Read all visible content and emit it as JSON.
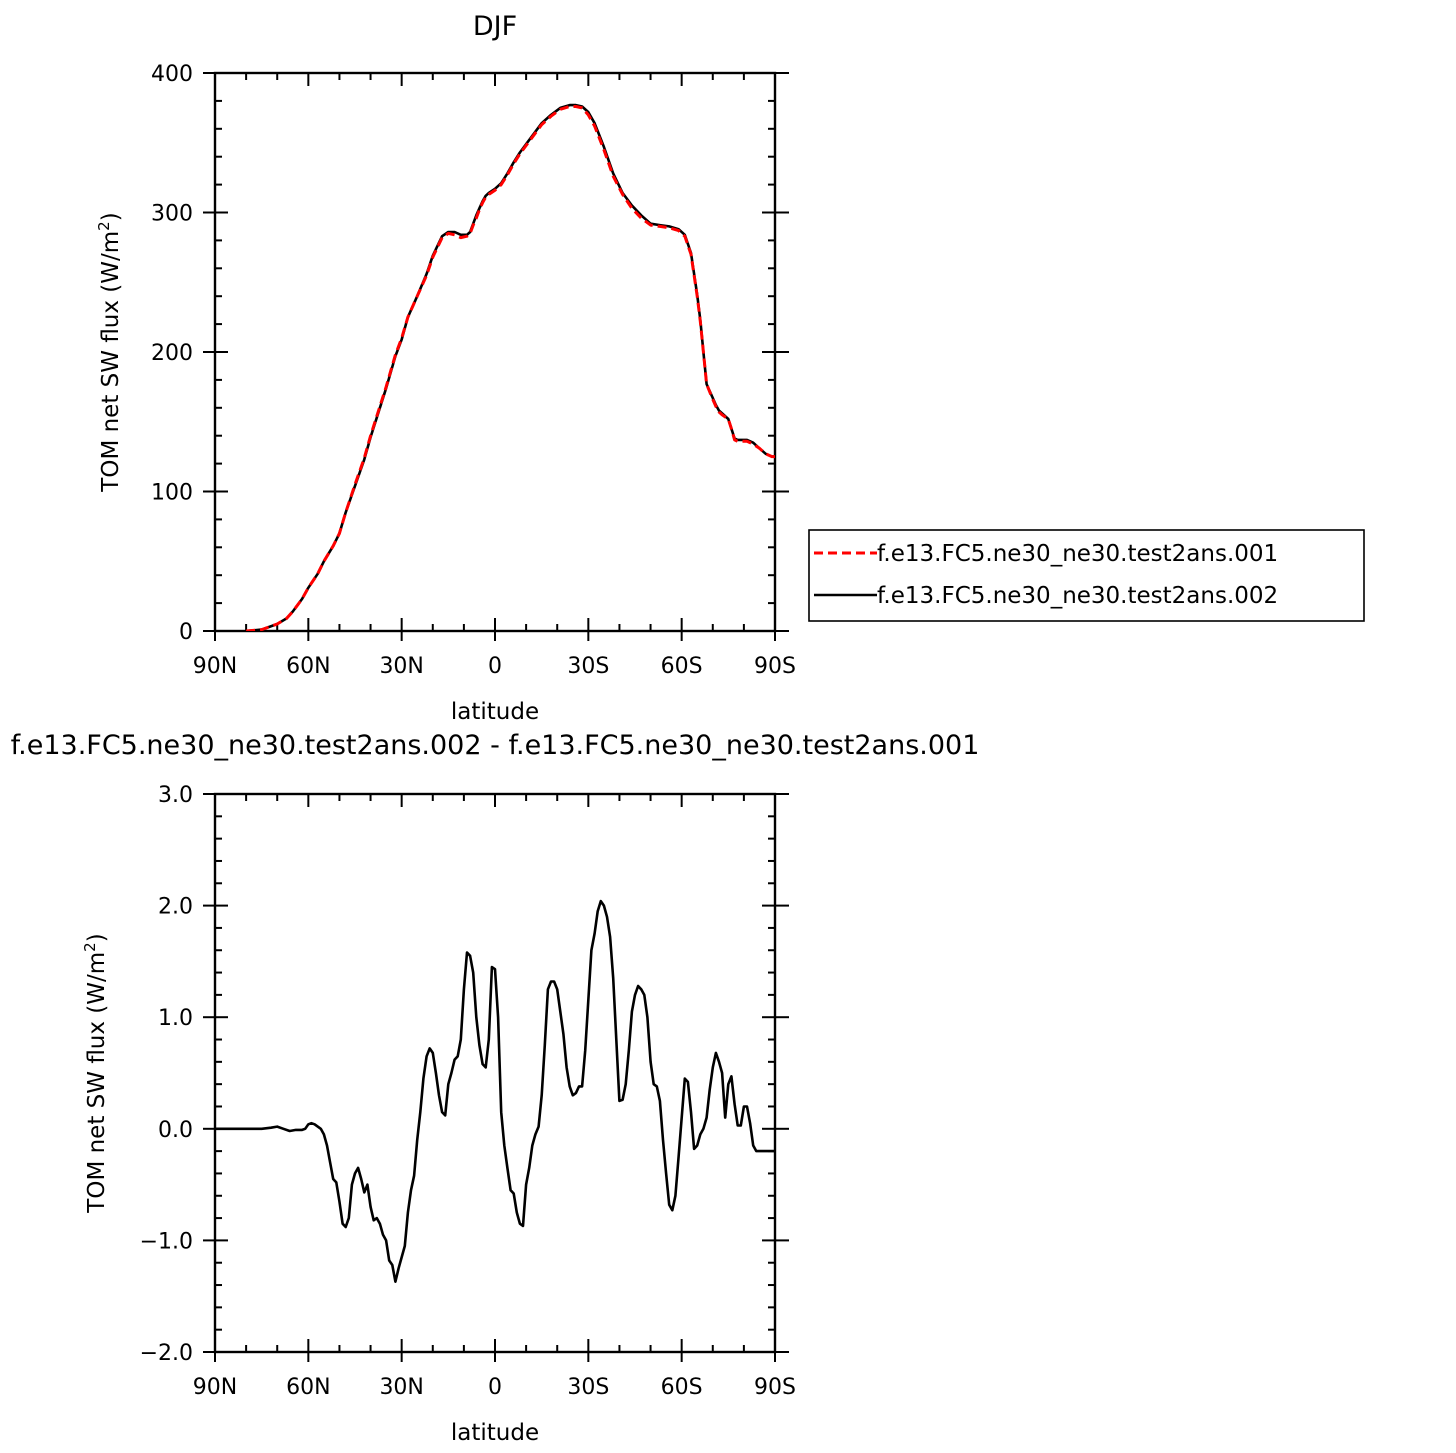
{
  "chart_data": [
    {
      "type": "line",
      "title": "DJF",
      "xlabel": "latitude",
      "ylabel": "TOM net SW flux (W/m²)",
      "ylabel_parts": {
        "main": "TOM net SW flux (W/m",
        "sup": "2",
        "close": ")"
      },
      "xlim": [
        90,
        -90
      ],
      "ylim": [
        0,
        400
      ],
      "x_ticks": [
        90,
        60,
        30,
        0,
        -30,
        -60,
        -90
      ],
      "x_tick_labels": [
        "90N",
        "60N",
        "30N",
        "0",
        "30S",
        "60S",
        "90S"
      ],
      "y_ticks": [
        0,
        100,
        200,
        300,
        400
      ],
      "y_tick_labels": [
        "0",
        "100",
        "200",
        "300",
        "400"
      ],
      "legend_position": "right",
      "grid": false,
      "series": [
        {
          "name": "f.e13.FC5.ne30_ne30.test2ans.001",
          "color": "#ff0000",
          "dash": true,
          "x": [
            80,
            75,
            70,
            67,
            65,
            62,
            60,
            57,
            55,
            52,
            50,
            48,
            45,
            42,
            40,
            37,
            35,
            32,
            30,
            28,
            25,
            22,
            20,
            17,
            15,
            13,
            11,
            9,
            8,
            7,
            6,
            5,
            4,
            3,
            2,
            0,
            -2,
            -4,
            -6,
            -8,
            -10,
            -12,
            -15,
            -18,
            -21,
            -24,
            -26,
            -28,
            -30,
            -32,
            -35,
            -38,
            -41,
            -44,
            -47,
            -50,
            -53,
            -56,
            -59,
            -61,
            -63,
            -65,
            -66,
            -67,
            -68,
            -70,
            -71,
            -72,
            -73,
            -75,
            -76,
            -77,
            -78,
            -80,
            -81,
            -83,
            -85,
            -87,
            -89,
            -90
          ],
          "y": [
            0,
            1,
            5,
            9,
            14,
            23,
            31,
            41,
            50,
            61,
            70,
            85,
            105,
            124,
            140,
            161,
            175,
            198,
            210,
            225,
            240,
            255,
            268,
            282,
            285,
            284,
            282,
            283,
            285,
            291,
            296,
            302,
            307,
            311,
            313,
            316,
            320,
            327,
            335,
            342,
            348,
            354,
            363,
            369,
            374,
            376,
            376,
            375,
            370,
            362,
            345,
            326,
            313,
            303,
            296,
            291,
            290,
            289,
            287,
            283,
            270,
            240,
            222,
            200,
            177,
            166,
            161,
            157,
            155,
            152,
            145,
            137,
            136,
            136,
            136,
            134,
            131,
            127,
            125,
            125
          ]
        },
        {
          "name": "f.e13.FC5.ne30_ne30.test2ans.002",
          "color": "#000000",
          "dash": false,
          "x": [
            80,
            75,
            70,
            67,
            65,
            62,
            60,
            57,
            55,
            52,
            50,
            48,
            45,
            42,
            40,
            37,
            35,
            32,
            30,
            28,
            25,
            22,
            20,
            17,
            15,
            13,
            11,
            9,
            8,
            7,
            6,
            5,
            4,
            3,
            2,
            0,
            -2,
            -4,
            -6,
            -8,
            -10,
            -12,
            -15,
            -18,
            -21,
            -24,
            -26,
            -28,
            -30,
            -32,
            -35,
            -38,
            -41,
            -44,
            -47,
            -50,
            -53,
            -56,
            -59,
            -61,
            -63,
            -65,
            -66,
            -67,
            -68,
            -70,
            -71,
            -72,
            -73,
            -75,
            -76,
            -77,
            -78,
            -80,
            -81,
            -83,
            -85,
            -87,
            -89,
            -90
          ],
          "y": [
            0,
            1,
            5,
            9,
            14,
            23,
            31,
            41,
            50,
            61,
            70,
            85,
            104,
            123,
            139,
            160,
            174,
            197,
            209,
            225,
            240,
            256,
            269,
            283,
            286,
            286,
            284,
            284,
            286,
            292,
            298,
            303,
            308,
            312,
            314,
            317,
            321,
            328,
            336,
            343,
            349,
            355,
            364,
            370,
            375,
            377,
            377,
            376,
            372,
            364,
            347,
            328,
            314,
            305,
            298,
            292,
            291,
            290,
            288,
            284,
            271,
            241,
            223,
            200,
            177,
            167,
            162,
            158,
            156,
            152,
            145,
            138,
            137,
            137,
            137,
            135,
            131,
            127,
            125,
            125
          ]
        }
      ]
    },
    {
      "type": "line",
      "title": "f.e13.FC5.ne30_ne30.test2ans.002 - f.e13.FC5.ne30_ne30.test2ans.001",
      "xlabel": "latitude",
      "ylabel": "TOM net SW flux (W/m²)",
      "ylabel_parts": {
        "main": "TOM net SW flux (W/m",
        "sup": "2",
        "close": ")"
      },
      "xlim": [
        90,
        -90
      ],
      "ylim": [
        -2.0,
        3.0
      ],
      "x_ticks": [
        90,
        60,
        30,
        0,
        -30,
        -60,
        -90
      ],
      "x_tick_labels": [
        "90N",
        "60N",
        "30N",
        "0",
        "30S",
        "60S",
        "90S"
      ],
      "y_ticks": [
        -2.0,
        -1.0,
        0.0,
        1.0,
        2.0,
        3.0
      ],
      "y_tick_labels": [
        "−2.0",
        "−1.0",
        "0.0",
        "1.0",
        "2.0",
        "3.0"
      ],
      "grid": false,
      "series": [
        {
          "color": "#000000",
          "x": [
            90,
            80,
            75,
            72,
            70,
            68,
            66,
            64,
            62,
            61,
            60,
            59,
            58,
            57,
            56,
            55,
            54,
            53,
            52,
            51,
            50,
            49,
            48,
            47,
            46,
            45,
            44,
            43,
            42,
            41,
            40,
            39,
            38,
            37,
            36,
            35,
            34,
            33,
            32,
            31,
            30,
            29,
            28,
            27,
            26,
            25,
            24,
            23,
            22,
            21,
            20,
            19,
            18,
            17,
            16,
            15,
            14,
            13,
            12,
            11,
            10,
            9,
            8,
            7,
            6,
            5,
            4,
            3,
            2,
            1,
            0,
            -1,
            -2,
            -3,
            -4,
            -5,
            -6,
            -7,
            -8,
            -9,
            -10,
            -11,
            -12,
            -13,
            -14,
            -15,
            -16,
            -17,
            -18,
            -19,
            -20,
            -21,
            -22,
            -23,
            -24,
            -25,
            -26,
            -27,
            -28,
            -29,
            -30,
            -31,
            -32,
            -33,
            -34,
            -35,
            -36,
            -37,
            -38,
            -39,
            -40,
            -41,
            -42,
            -43,
            -44,
            -45,
            -46,
            -47,
            -48,
            -49,
            -50,
            -51,
            -52,
            -53,
            -54,
            -55,
            -56,
            -57,
            -58,
            -59,
            -60,
            -61,
            -62,
            -63,
            -64,
            -65,
            -66,
            -67,
            -68,
            -69,
            -70,
            -71,
            -72,
            -73,
            -74,
            -75,
            -76,
            -77,
            -78,
            -79,
            -80,
            -81,
            -82,
            -83,
            -84,
            -85,
            -86,
            -87,
            -88,
            -89,
            -90
          ],
          "y": [
            0,
            0,
            0,
            0.01,
            0.02,
            0.0,
            -0.02,
            -0.01,
            -0.01,
            0.0,
            0.04,
            0.05,
            0.04,
            0.02,
            0.0,
            -0.05,
            -0.15,
            -0.3,
            -0.45,
            -0.48,
            -0.65,
            -0.85,
            -0.88,
            -0.8,
            -0.5,
            -0.4,
            -0.35,
            -0.45,
            -0.57,
            -0.5,
            -0.7,
            -0.82,
            -0.8,
            -0.85,
            -0.95,
            -1.0,
            -1.18,
            -1.22,
            -1.37,
            -1.25,
            -1.15,
            -1.05,
            -0.75,
            -0.55,
            -0.42,
            -0.1,
            0.15,
            0.45,
            0.65,
            0.72,
            0.68,
            0.5,
            0.3,
            0.15,
            0.12,
            0.4,
            0.5,
            0.62,
            0.65,
            0.8,
            1.25,
            1.58,
            1.55,
            1.4,
            1.0,
            0.75,
            0.58,
            0.55,
            0.8,
            1.45,
            1.43,
            1.0,
            0.15,
            -0.15,
            -0.35,
            -0.55,
            -0.58,
            -0.75,
            -0.85,
            -0.87,
            -0.5,
            -0.35,
            -0.15,
            -0.05,
            0.02,
            0.3,
            0.75,
            1.25,
            1.32,
            1.32,
            1.25,
            1.05,
            0.85,
            0.55,
            0.38,
            0.3,
            0.32,
            0.38,
            0.38,
            0.7,
            1.15,
            1.6,
            1.75,
            1.95,
            2.04,
            2.0,
            1.9,
            1.72,
            1.35,
            0.8,
            0.25,
            0.26,
            0.4,
            0.7,
            1.05,
            1.2,
            1.28,
            1.25,
            1.2,
            1.0,
            0.6,
            0.4,
            0.38,
            0.25,
            -0.1,
            -0.4,
            -0.68,
            -0.73,
            -0.6,
            -0.25,
            0.1,
            0.45,
            0.42,
            0.15,
            -0.18,
            -0.15,
            -0.05,
            0.0,
            0.1,
            0.35,
            0.55,
            0.68,
            0.6,
            0.5,
            0.1,
            0.4,
            0.47,
            0.22,
            0.03,
            0.03,
            0.2,
            0.2,
            0.05,
            -0.15,
            -0.2,
            -0.2,
            -0.2,
            -0.2,
            -0.2,
            -0.2,
            -0.2
          ]
        }
      ]
    }
  ],
  "axis_colors": {
    "axis": "#000000",
    "legend_border": "#000000"
  }
}
